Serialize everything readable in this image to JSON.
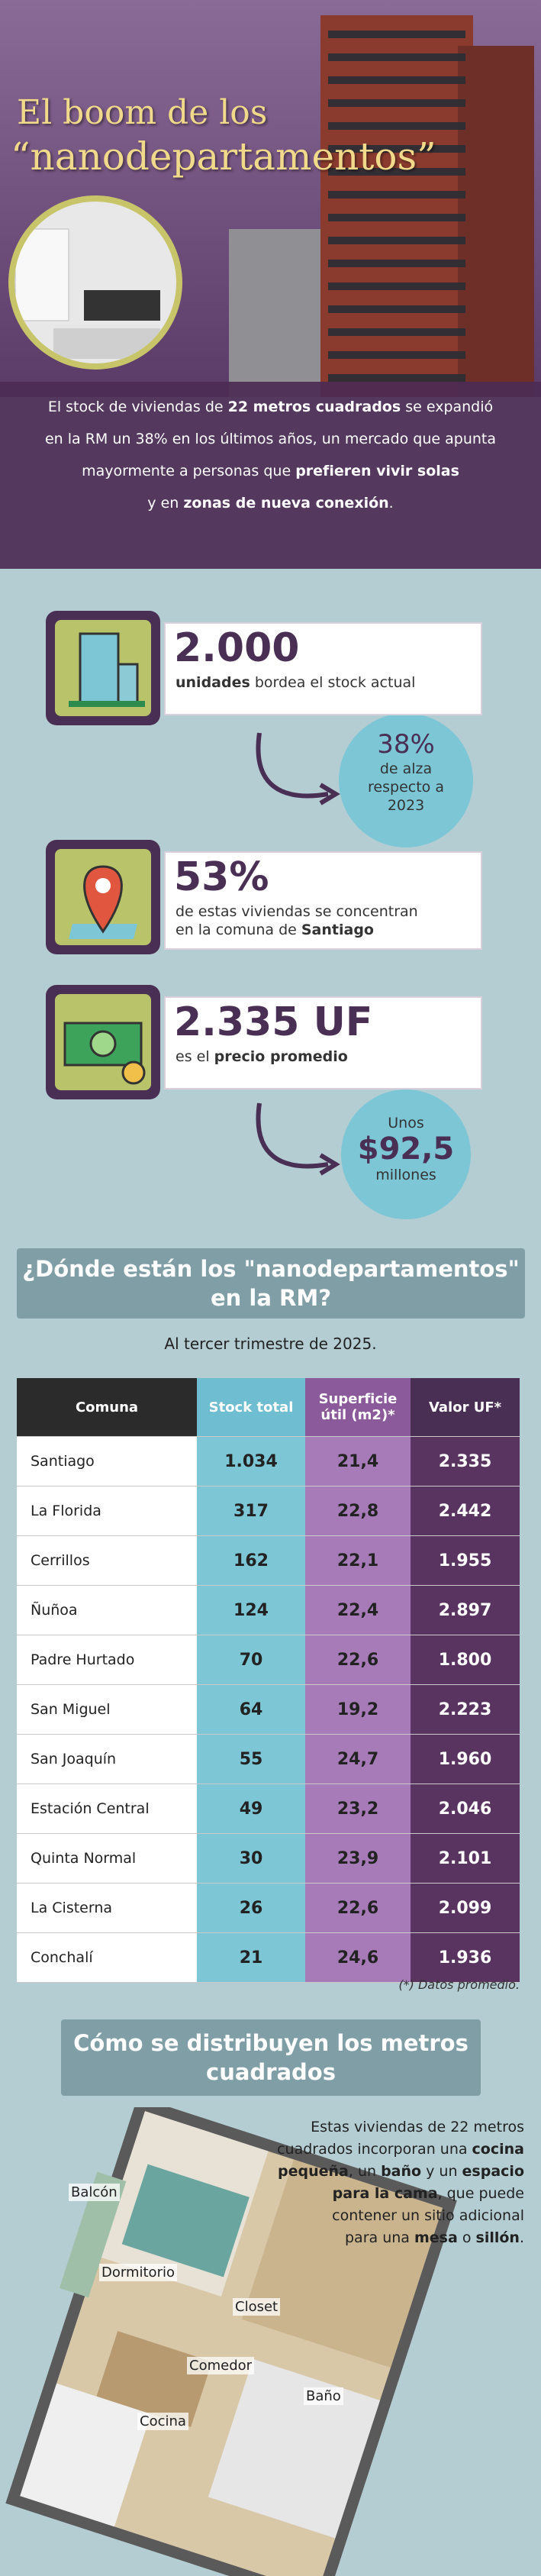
{
  "header": {
    "title_line1": "El boom de los",
    "title_line2": "“nanodepartamentos”"
  },
  "intro": {
    "lines": [
      [
        {
          "text": "El stock de viviendas de  "
        },
        {
          "text": "22 metros cuadrados",
          "bold": true
        },
        {
          "text": " se expandió"
        }
      ],
      [
        {
          "text": "en la RM un 38% en los últimos años, un mercado que apunta"
        }
      ],
      [
        {
          "text": "mayormente a personas que "
        },
        {
          "text": "prefieren vivir solas",
          "bold": true
        }
      ],
      [
        {
          "text": "y en "
        },
        {
          "text": "zonas de nueva conexión",
          "bold": true
        },
        {
          "text": "."
        }
      ]
    ]
  },
  "stats": [
    {
      "value": "2.000",
      "lines": [
        [
          {
            "text": "unidades",
            "bold": true
          },
          {
            "text": " bordea el stock actual"
          }
        ]
      ]
    },
    {
      "value": "53%",
      "lines": [
        [
          {
            "text": "de estas viviendas se concentran"
          }
        ],
        [
          {
            "text": "en la comuna de "
          },
          {
            "text": "Santiago",
            "bold": true
          }
        ]
      ]
    },
    {
      "value": "2.335 UF",
      "lines": [
        [
          {
            "text": "es el "
          },
          {
            "text": "precio promedio",
            "bold": true
          }
        ]
      ]
    }
  ],
  "callouts": [
    {
      "big": "38%",
      "lines": [
        "de alza",
        "respecto a",
        "2023"
      ]
    },
    {
      "top": "Unos",
      "big": "$92,5",
      "bottom": "millones"
    }
  ],
  "table_section": {
    "heading_line1": "¿Dónde están los \"nanodepartamentos\"",
    "heading_line2": "en la RM?",
    "subtitle": "Al tercer trimestre de 2025.",
    "footnote": "(*) Datos promedio."
  },
  "table": {
    "headers": [
      "Comuna",
      "Stock total",
      "Superficie útil (m2)*",
      "Valor UF*"
    ],
    "rows": [
      [
        "Santiago",
        "1.034",
        "21,4",
        "2.335"
      ],
      [
        "La Florida",
        "317",
        "22,8",
        "2.442"
      ],
      [
        "Cerrillos",
        "162",
        "22,1",
        "1.955"
      ],
      [
        "Ñuñoa",
        "124",
        "22,4",
        "2.897"
      ],
      [
        "Padre Hurtado",
        "70",
        "22,6",
        "1.800"
      ],
      [
        "San Miguel",
        "64",
        "19,2",
        "2.223"
      ],
      [
        "San Joaquín",
        "55",
        "24,7",
        "1.960"
      ],
      [
        "Estación Central",
        "49",
        "23,2",
        "2.046"
      ],
      [
        "Quinta Normal",
        "30",
        "23,9",
        "2.101"
      ],
      [
        "La Cisterna",
        "26",
        "22,6",
        "2.099"
      ],
      [
        "Conchalí",
        "21",
        "24,6",
        "1.936"
      ]
    ]
  },
  "floor_section": {
    "heading_line1": "Cómo se distribuyen los metros",
    "heading_line2": "cuadrados",
    "text_lines": [
      [
        {
          "text": "Estas viviendas de 22 metros"
        }
      ],
      [
        {
          "text": "cuadrados incorporan una "
        },
        {
          "text": "cocina",
          "bold": true
        }
      ],
      [
        {
          "text": "pequeña",
          "bold": true
        },
        {
          "text": ", un "
        },
        {
          "text": "baño",
          "bold": true
        },
        {
          "text": " y un "
        },
        {
          "text": "espacio",
          "bold": true
        }
      ],
      [
        {
          "text": "para la cama",
          "bold": true
        },
        {
          "text": ", que puede"
        }
      ],
      [
        {
          "text": "contener un sitio adicional"
        }
      ],
      [
        {
          "text": "para una "
        },
        {
          "text": "mesa",
          "bold": true
        },
        {
          "text": " o "
        },
        {
          "text": "sillón",
          "bold": true
        },
        {
          "text": "."
        }
      ]
    ],
    "labels": [
      "Balcón",
      "Dormitorio",
      "Closet",
      "Comedor",
      "Baño",
      "Cocina"
    ]
  }
}
